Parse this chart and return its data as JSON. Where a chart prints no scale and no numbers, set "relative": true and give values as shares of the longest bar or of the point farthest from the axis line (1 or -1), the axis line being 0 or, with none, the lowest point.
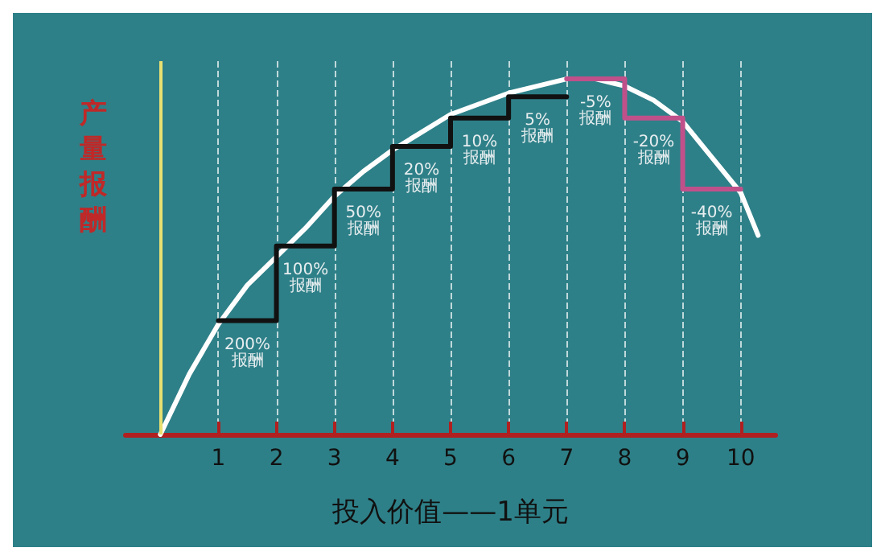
{
  "chart_data": {
    "type": "line",
    "relative": true,
    "xlabel": "投入价值——1单元",
    "ylabel": "产量报酬",
    "xlim": [
      -0.6,
      10.6
    ],
    "xticks": [
      1,
      2,
      3,
      4,
      5,
      6,
      7,
      8,
      9,
      10
    ],
    "grid": "x",
    "marker": "none",
    "series": [
      {
        "color": "#ffffff",
        "x": [
          0,
          0.5,
          1,
          1.5,
          2,
          2.5,
          3,
          3.5,
          4,
          4.5,
          5,
          5.5,
          6,
          6.5,
          7,
          7.5,
          8,
          8.5,
          9,
          9.5,
          10,
          10.3
        ],
        "values": [
          0,
          0.17,
          0.31,
          0.42,
          0.5,
          0.58,
          0.67,
          0.74,
          0.8,
          0.85,
          0.9,
          0.93,
          0.96,
          0.98,
          1,
          1,
          0.98,
          0.94,
          0.88,
          0.78,
          0.68,
          0.56
        ]
      },
      {
        "type": "step",
        "color": "#111111",
        "x": [
          1,
          2,
          3,
          4,
          5,
          6,
          7
        ],
        "values": [
          0.32,
          0.53,
          0.69,
          0.81,
          0.89,
          0.95,
          0.95
        ]
      },
      {
        "type": "step",
        "color": "#c0508a",
        "x": [
          7,
          8,
          9,
          10
        ],
        "values": [
          1,
          0.89,
          0.69,
          0.69
        ]
      }
    ],
    "ref_lines": [
      {
        "axis": "x",
        "value": 0,
        "color": "#e8e070"
      }
    ],
    "annotations": [
      "200%\n报酬",
      "100%\n报酬",
      "50%\n报酬",
      "20%\n报酬",
      "10%\n报酬",
      "5%\n报酬",
      "-5%\n报酬",
      "-20%\n报酬",
      "-40%\n报酬"
    ]
  }
}
